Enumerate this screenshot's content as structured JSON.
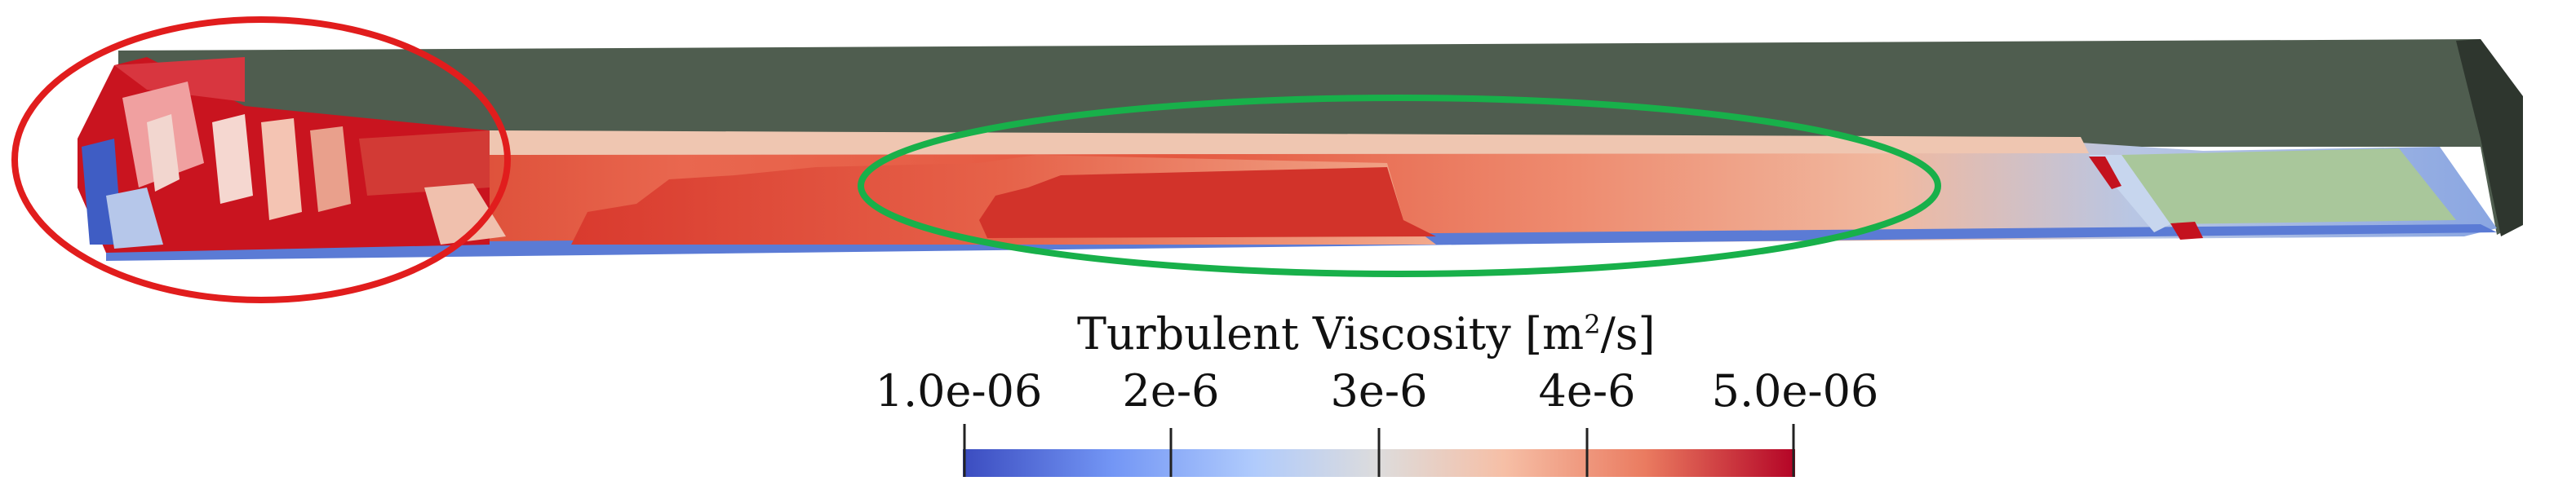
{
  "colorbar": {
    "title_main": "Turbulent Viscosity [m",
    "title_sup": "2",
    "title_end": "/s]",
    "ticks": [
      "1.0e-06",
      "2e-6",
      "3e-6",
      "4e-6",
      "5.0e-06"
    ],
    "range": [
      1e-06,
      5e-06
    ],
    "colormap": [
      "#3b4cc0",
      "#7396f5",
      "#b0cbfc",
      "#dddcdc",
      "#f6bfa6",
      "#ea7b60",
      "#b40426"
    ]
  },
  "annotations": {
    "left_ellipse_color": "#e11d1d",
    "right_ellipse_color": "#18b04a"
  }
}
